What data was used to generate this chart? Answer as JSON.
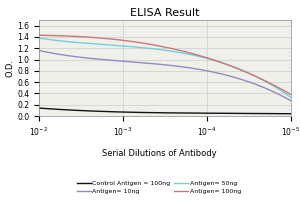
{
  "title": "ELISA Result",
  "ylabel": "O.D.",
  "xlabel": "Serial Dilutions of Antibody",
  "ylim": [
    0,
    1.7
  ],
  "yticks": [
    0,
    0.2,
    0.4,
    0.6,
    0.8,
    1.0,
    1.2,
    1.4,
    1.6
  ],
  "x_positions": [
    1,
    2,
    3,
    4
  ],
  "x_tick_labels": [
    "10^-2",
    "10^-3",
    "10^-4",
    "10^-5"
  ],
  "lines": [
    {
      "label": "Control Antigen = 100ng",
      "color": "#111111",
      "y_values": [
        0.14,
        0.07,
        0.05,
        0.04
      ]
    },
    {
      "label": "Antigen= 10ng",
      "color": "#9988bb",
      "y_values": [
        1.16,
        0.97,
        0.8,
        0.27
      ]
    },
    {
      "label": "Antigen= 50ng",
      "color": "#77ccdd",
      "y_values": [
        1.38,
        1.24,
        1.02,
        0.33
      ]
    },
    {
      "label": "Antigen= 100ng",
      "color": "#cc7777",
      "y_values": [
        1.43,
        1.34,
        1.03,
        0.38
      ]
    }
  ],
  "background_color": "#f0f0eb",
  "grid_color": "#cccccc",
  "title_fontsize": 8,
  "axis_fontsize": 5.5,
  "legend_fontsize": 4.5,
  "xlabel_fontsize": 6
}
